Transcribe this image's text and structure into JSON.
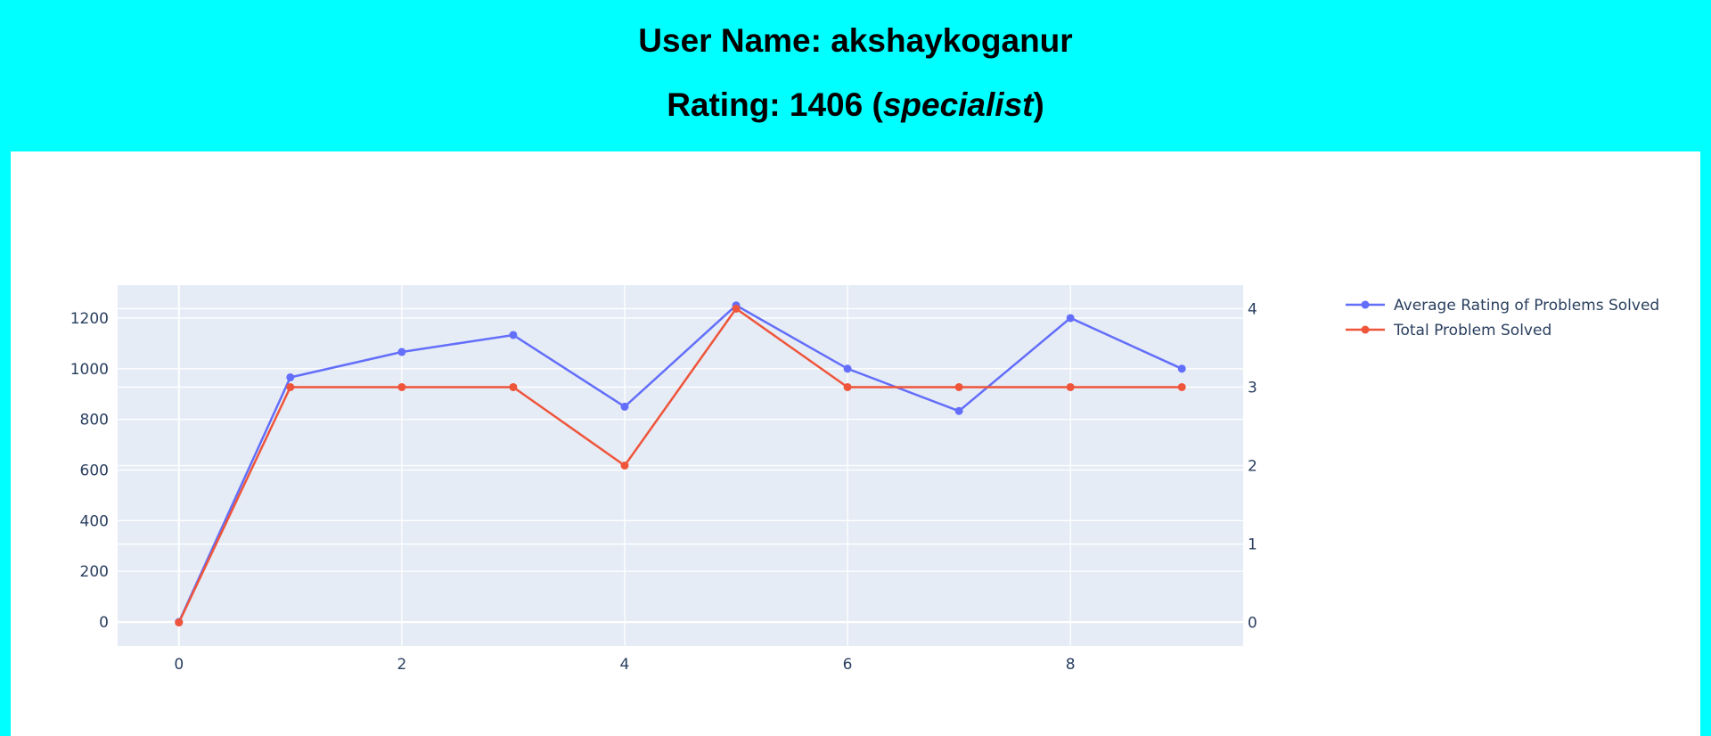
{
  "header": {
    "user_label": "User Name: ",
    "user_name": "akshaykoganur",
    "rating_label": "Rating: ",
    "rating_value": "1406",
    "rating_open": " (",
    "rank": "specialist",
    "rating_close": ")"
  },
  "colors": {
    "page_background": "#00ffff",
    "plot_background": "#e5ecf6",
    "series_avg": "#636efa",
    "series_total": "#ef553b"
  },
  "chart_data": {
    "type": "line",
    "title": "",
    "xlabel": "",
    "ylabel": "",
    "x": [
      0,
      1,
      2,
      3,
      4,
      5,
      6,
      7,
      8,
      9
    ],
    "xlim": [
      -0.55,
      9.55
    ],
    "x_ticks": [
      0,
      2,
      4,
      6,
      8
    ],
    "y_left_lim": [
      -95,
      1330
    ],
    "y_left_ticks": [
      0,
      200,
      400,
      600,
      800,
      1000,
      1200
    ],
    "y_right_lim": [
      -0.3,
      4.3
    ],
    "y_right_ticks": [
      0,
      1,
      2,
      3,
      4
    ],
    "grid": true,
    "legend_position": "top-right, outside plot",
    "series": [
      {
        "name": "Average Rating of Problems Solved",
        "axis": "left",
        "color": "#636efa",
        "values": [
          0,
          966,
          1066,
          1133,
          850,
          1250,
          1000,
          833,
          1200,
          1000
        ]
      },
      {
        "name": "Total Problem Solved",
        "axis": "right",
        "color": "#ef553b",
        "values": [
          0,
          3,
          3,
          3,
          2,
          4,
          3,
          3,
          3,
          3
        ]
      }
    ]
  }
}
